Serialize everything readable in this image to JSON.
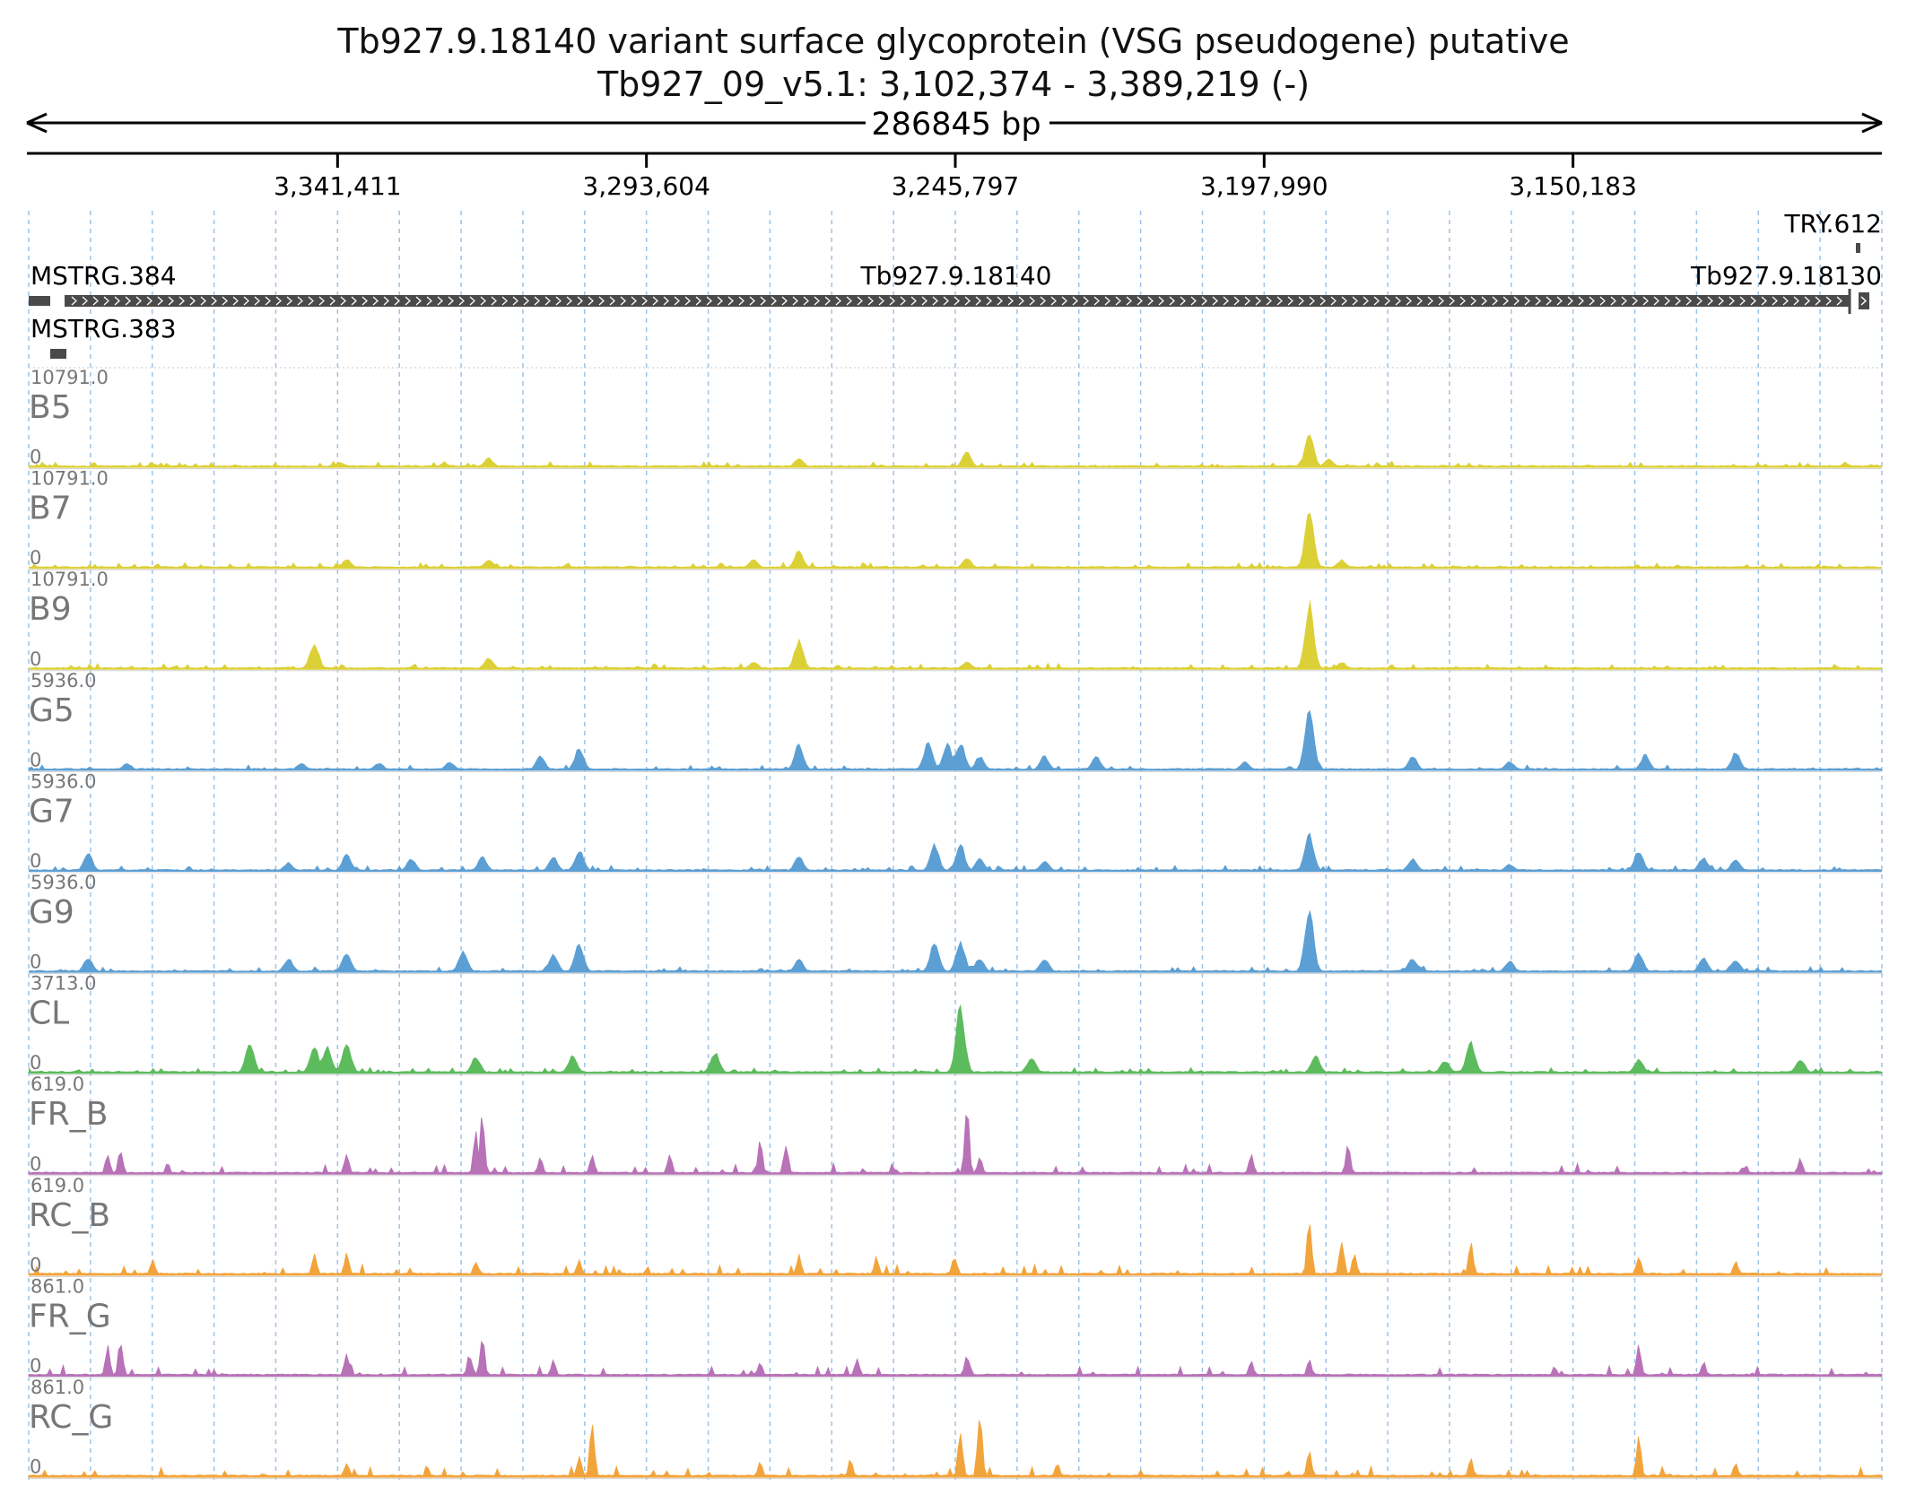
{
  "header": {
    "title": "Tb927.9.18140  variant surface glycoprotein (VSG  pseudogene)  putative",
    "locus": "Tb927_09_v5.1: 3,102,374 - 3,389,219 (-)",
    "span_label": "286845 bp"
  },
  "colors": {
    "yellow": "#dcd037",
    "blue": "#5b9fd4",
    "green": "#5cbb5c",
    "purple": "#b872b8",
    "orange": "#f2a43c",
    "gene": "#4a4a4a",
    "grid": "#9ec3e6"
  },
  "chart_data": {
    "type": "area",
    "title": "Tb927.9.18140  variant surface glycoprotein (VSG  pseudogene)  putative",
    "region": {
      "chrom": "Tb927_09_v5.1",
      "start": 3102374,
      "end": 3389219,
      "strand": "-",
      "length_bp": 286845
    },
    "x_ticks": [
      "3,341,411",
      "3,293,604",
      "3,245,797",
      "3,197,990",
      "3,150,183"
    ],
    "x_tick_values": [
      3341411,
      3293604,
      3245797,
      3197990,
      3150183
    ],
    "genes": [
      {
        "name": "MSTRG.384"
      },
      {
        "name": "Tb927.9.18140"
      },
      {
        "name": "Tb927.9.18130"
      },
      {
        "name": "TRY.612"
      },
      {
        "name": "MSTRG.383"
      }
    ],
    "tracks": [
      {
        "name": "B5",
        "max_label": "10791.0",
        "min_label": "0",
        "color_key": "yellow",
        "peaks": [
          [
            3370000,
            0.05
          ],
          [
            3341000,
            0.07
          ],
          [
            3318000,
            0.13
          ],
          [
            3270000,
            0.13
          ],
          [
            3244000,
            0.22
          ],
          [
            3191000,
            0.47
          ],
          [
            3188000,
            0.12
          ],
          [
            3108000,
            0.05
          ]
        ]
      },
      {
        "name": "B7",
        "max_label": "10791.0",
        "min_label": "0",
        "color_key": "yellow",
        "peaks": [
          [
            3340000,
            0.13
          ],
          [
            3318000,
            0.12
          ],
          [
            3277000,
            0.12
          ],
          [
            3270000,
            0.25
          ],
          [
            3244000,
            0.14
          ],
          [
            3191000,
            0.85
          ],
          [
            3186000,
            0.12
          ]
        ]
      },
      {
        "name": "B9",
        "max_label": "10791.0",
        "min_label": "0",
        "color_key": "yellow",
        "peaks": [
          [
            3345000,
            0.37
          ],
          [
            3318000,
            0.17
          ],
          [
            3277000,
            0.1
          ],
          [
            3270000,
            0.42
          ],
          [
            3244000,
            0.11
          ],
          [
            3191000,
            0.95
          ],
          [
            3186000,
            0.1
          ]
        ]
      },
      {
        "name": "G5",
        "max_label": "5936.0",
        "min_label": "0",
        "color_key": "blue",
        "peaks": [
          [
            3374000,
            0.1
          ],
          [
            3347000,
            0.1
          ],
          [
            3335000,
            0.1
          ],
          [
            3324000,
            0.12
          ],
          [
            3310000,
            0.2
          ],
          [
            3304000,
            0.33
          ],
          [
            3270000,
            0.38
          ],
          [
            3250000,
            0.4
          ],
          [
            3247000,
            0.38
          ],
          [
            3245000,
            0.4
          ],
          [
            3242000,
            0.2
          ],
          [
            3232000,
            0.2
          ],
          [
            3224000,
            0.2
          ],
          [
            3201000,
            0.12
          ],
          [
            3191000,
            0.97
          ],
          [
            3175000,
            0.2
          ],
          [
            3160000,
            0.13
          ],
          [
            3139000,
            0.22
          ],
          [
            3125000,
            0.25
          ]
        ]
      },
      {
        "name": "G7",
        "max_label": "5936.0",
        "min_label": "0",
        "color_key": "blue",
        "peaks": [
          [
            3380000,
            0.25
          ],
          [
            3349000,
            0.12
          ],
          [
            3340000,
            0.24
          ],
          [
            3330000,
            0.18
          ],
          [
            3319000,
            0.2
          ],
          [
            3308000,
            0.2
          ],
          [
            3304000,
            0.3
          ],
          [
            3270000,
            0.21
          ],
          [
            3249000,
            0.38
          ],
          [
            3245000,
            0.38
          ],
          [
            3242000,
            0.18
          ],
          [
            3232000,
            0.15
          ],
          [
            3191000,
            0.55
          ],
          [
            3175000,
            0.18
          ],
          [
            3160000,
            0.1
          ],
          [
            3140000,
            0.3
          ],
          [
            3130000,
            0.2
          ],
          [
            3125000,
            0.18
          ]
        ]
      },
      {
        "name": "G9",
        "max_label": "5936.0",
        "min_label": "0",
        "color_key": "blue",
        "peaks": [
          [
            3380000,
            0.2
          ],
          [
            3349000,
            0.2
          ],
          [
            3340000,
            0.28
          ],
          [
            3322000,
            0.31
          ],
          [
            3308000,
            0.25
          ],
          [
            3304000,
            0.42
          ],
          [
            3270000,
            0.18
          ],
          [
            3249000,
            0.46
          ],
          [
            3245000,
            0.44
          ],
          [
            3242000,
            0.2
          ],
          [
            3232000,
            0.2
          ],
          [
            3191000,
            0.9
          ],
          [
            3175000,
            0.2
          ],
          [
            3160000,
            0.16
          ],
          [
            3140000,
            0.28
          ],
          [
            3130000,
            0.2
          ],
          [
            3125000,
            0.18
          ]
        ]
      },
      {
        "name": "CL",
        "max_label": "3713.0",
        "min_label": "0",
        "color_key": "green",
        "peaks": [
          [
            3355000,
            0.4
          ],
          [
            3345000,
            0.4
          ],
          [
            3343000,
            0.38
          ],
          [
            3340000,
            0.45
          ],
          [
            3320000,
            0.23
          ],
          [
            3305000,
            0.25
          ],
          [
            3283000,
            0.3
          ],
          [
            3245000,
            0.98
          ],
          [
            3234000,
            0.22
          ],
          [
            3190000,
            0.25
          ],
          [
            3170000,
            0.18
          ],
          [
            3166000,
            0.45
          ],
          [
            3140000,
            0.2
          ],
          [
            3115000,
            0.2
          ]
        ]
      },
      {
        "name": "FR_B",
        "max_label": "619.0",
        "min_label": "0",
        "color_key": "purple",
        "peaks": [
          [
            3377000,
            0.28
          ],
          [
            3375000,
            0.35
          ],
          [
            3340000,
            0.3
          ],
          [
            3320000,
            0.58
          ],
          [
            3319000,
            0.85
          ],
          [
            3310000,
            0.25
          ],
          [
            3302000,
            0.3
          ],
          [
            3290000,
            0.3
          ],
          [
            3276000,
            0.45
          ],
          [
            3272000,
            0.42
          ],
          [
            3244000,
            0.95
          ],
          [
            3242000,
            0.25
          ],
          [
            3200000,
            0.3
          ],
          [
            3185000,
            0.45
          ],
          [
            3115000,
            0.22
          ]
        ]
      },
      {
        "name": "RC_B",
        "max_label": "619.0",
        "min_label": "0",
        "color_key": "orange",
        "peaks": [
          [
            3370000,
            0.22
          ],
          [
            3345000,
            0.28
          ],
          [
            3340000,
            0.35
          ],
          [
            3320000,
            0.2
          ],
          [
            3304000,
            0.2
          ],
          [
            3270000,
            0.28
          ],
          [
            3258000,
            0.25
          ],
          [
            3246000,
            0.25
          ],
          [
            3191000,
            0.8
          ],
          [
            3186000,
            0.5
          ],
          [
            3184000,
            0.3
          ],
          [
            3166000,
            0.45
          ],
          [
            3140000,
            0.28
          ],
          [
            3125000,
            0.22
          ]
        ]
      },
      {
        "name": "FR_G",
        "max_label": "861.0",
        "min_label": "0",
        "color_key": "purple",
        "peaks": [
          [
            3377000,
            0.42
          ],
          [
            3375000,
            0.5
          ],
          [
            3340000,
            0.35
          ],
          [
            3321000,
            0.3
          ],
          [
            3319000,
            0.55
          ],
          [
            3308000,
            0.22
          ],
          [
            3276000,
            0.2
          ],
          [
            3261000,
            0.25
          ],
          [
            3244000,
            0.32
          ],
          [
            3200000,
            0.2
          ],
          [
            3191000,
            0.22
          ],
          [
            3140000,
            0.45
          ],
          [
            3130000,
            0.2
          ]
        ]
      },
      {
        "name": "RC_G",
        "max_label": "861.0",
        "min_label": "0",
        "color_key": "orange",
        "peaks": [
          [
            3340000,
            0.2
          ],
          [
            3304000,
            0.3
          ],
          [
            3302000,
            0.85
          ],
          [
            3276000,
            0.2
          ],
          [
            3262000,
            0.25
          ],
          [
            3245000,
            0.7
          ],
          [
            3242000,
            0.95
          ],
          [
            3230000,
            0.2
          ],
          [
            3191000,
            0.4
          ],
          [
            3166000,
            0.25
          ],
          [
            3140000,
            0.55
          ],
          [
            3125000,
            0.2
          ]
        ]
      }
    ]
  }
}
